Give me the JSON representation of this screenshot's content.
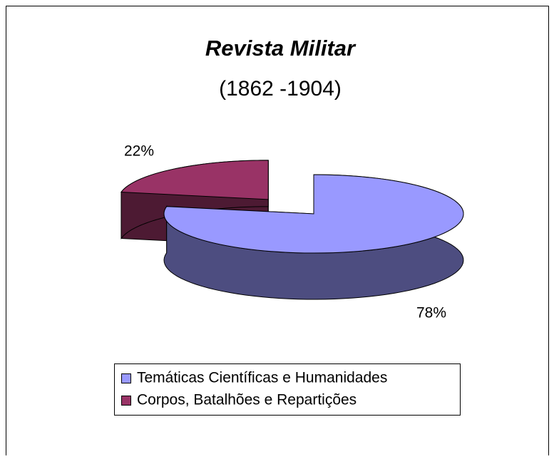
{
  "chart_data": {
    "type": "pie3d",
    "title": "Revista Militar",
    "subtitle": "(1862 -1904)",
    "categories": [
      "Temáticas Científicas e Humanidades",
      "Corpos, Batalhões e Repartições"
    ],
    "values": [
      78,
      22
    ],
    "value_labels": [
      "78%",
      "22%"
    ],
    "colors": [
      "#9999ff",
      "#993366"
    ],
    "legend": "bottom"
  }
}
